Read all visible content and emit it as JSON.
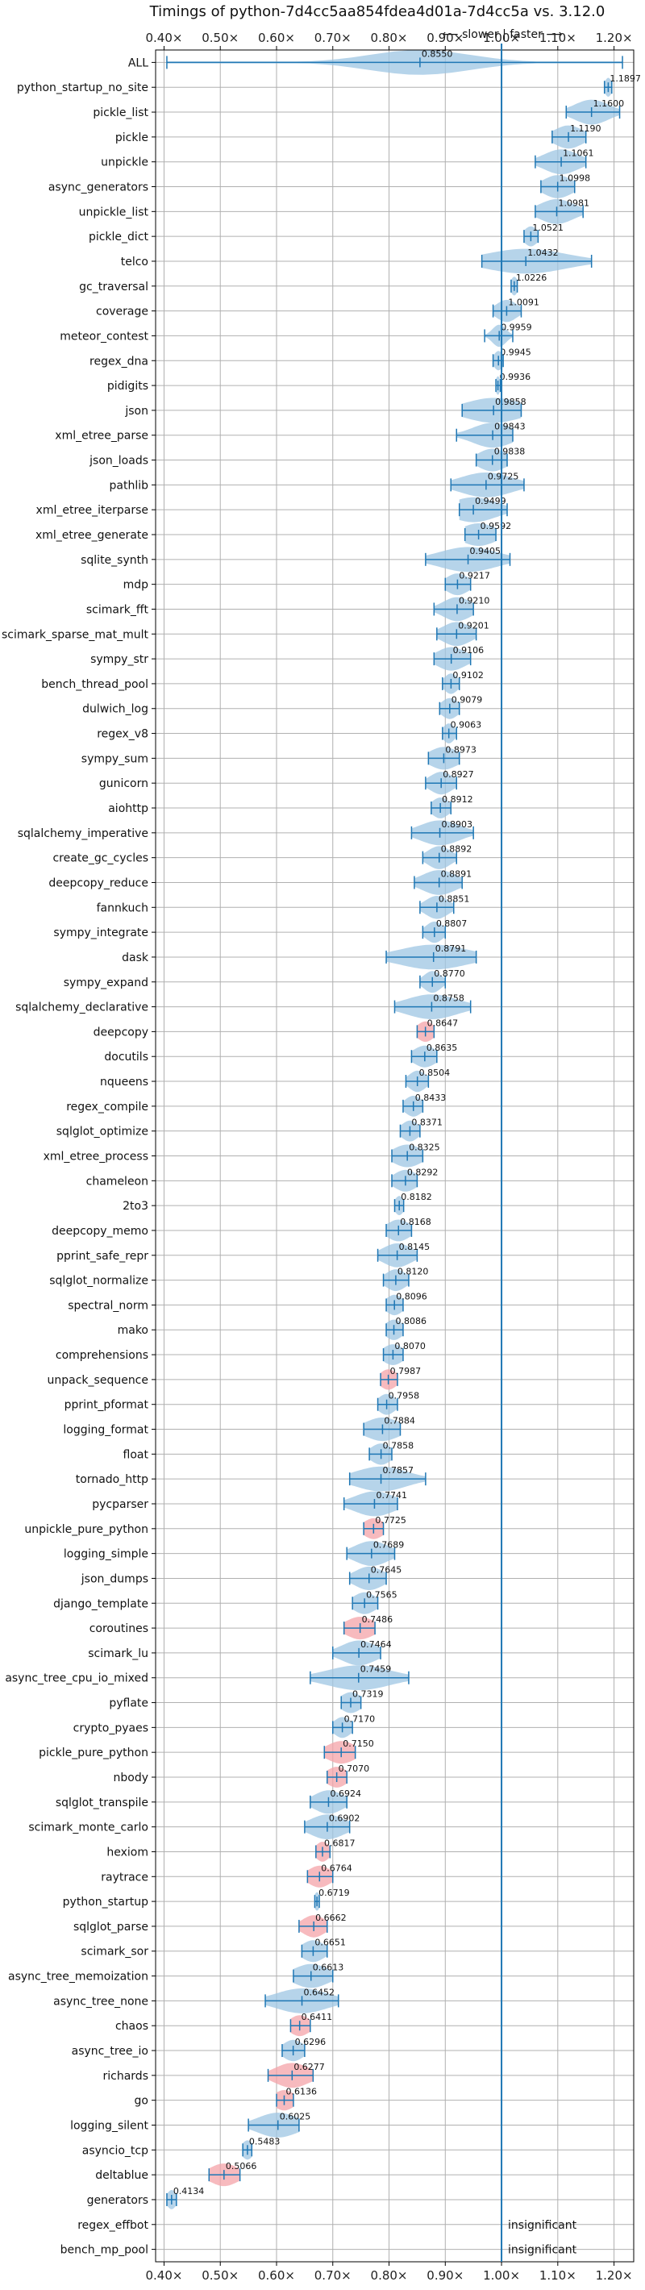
{
  "chart_data": {
    "type": "violin",
    "title": "Timings of python-7d4cc5aa854fdea4d01a-7d4cc5a vs. 3.12.0",
    "direction_label": "⟵ slower | faster ⟶",
    "xlim": [
      0.385,
      1.235
    ],
    "xticks": [
      0.4,
      0.5,
      0.6,
      0.7,
      0.8,
      0.9,
      1.0,
      1.1,
      1.2
    ],
    "xtick_labels": [
      "0.40×",
      "0.50×",
      "0.60×",
      "0.70×",
      "0.80×",
      "0.90×",
      "1.00×",
      "1.10×",
      "1.20×"
    ],
    "reference_line": 1.0,
    "grid": true,
    "colors": {
      "normal": "#9ec5e3",
      "significant_slow": "#f4a3a8",
      "line": "#1f77b4",
      "grid": "#b0b0b0"
    },
    "benchmarks": [
      {
        "name": "ALL",
        "value": 0.855,
        "label": "0.8550",
        "lo": 0.405,
        "hi": 1.215,
        "spread": 0.09,
        "highlight": false
      },
      {
        "name": "python_startup_no_site",
        "value": 1.1897,
        "label": "1.1897",
        "lo": 1.183,
        "hi": 1.196,
        "spread": 0.006,
        "highlight": false
      },
      {
        "name": "pickle_list",
        "value": 1.16,
        "label": "1.1600",
        "lo": 1.115,
        "hi": 1.21,
        "spread": 0.03,
        "highlight": false
      },
      {
        "name": "pickle",
        "value": 1.119,
        "label": "1.1190",
        "lo": 1.09,
        "hi": 1.15,
        "spread": 0.025,
        "highlight": false
      },
      {
        "name": "unpickle",
        "value": 1.1061,
        "label": "1.1061",
        "lo": 1.06,
        "hi": 1.15,
        "spread": 0.03,
        "highlight": false
      },
      {
        "name": "async_generators",
        "value": 1.0998,
        "label": "1.0998",
        "lo": 1.07,
        "hi": 1.13,
        "spread": 0.025,
        "highlight": false
      },
      {
        "name": "unpickle_list",
        "value": 1.0981,
        "label": "1.0981",
        "lo": 1.06,
        "hi": 1.145,
        "spread": 0.03,
        "highlight": false
      },
      {
        "name": "pickle_dict",
        "value": 1.0521,
        "label": "1.0521",
        "lo": 1.04,
        "hi": 1.065,
        "spread": 0.012,
        "highlight": false
      },
      {
        "name": "telco",
        "value": 1.0432,
        "label": "1.0432",
        "lo": 0.965,
        "hi": 1.16,
        "spread": 0.07,
        "highlight": false
      },
      {
        "name": "gc_traversal",
        "value": 1.0226,
        "label": "1.0226",
        "lo": 1.017,
        "hi": 1.028,
        "spread": 0.006,
        "highlight": false
      },
      {
        "name": "coverage",
        "value": 1.0091,
        "label": "1.0091",
        "lo": 0.985,
        "hi": 1.035,
        "spread": 0.018,
        "highlight": false
      },
      {
        "name": "meteor_contest",
        "value": 0.9959,
        "label": "0.9959",
        "lo": 0.97,
        "hi": 1.02,
        "spread": 0.012,
        "highlight": false
      },
      {
        "name": "regex_dna",
        "value": 0.9945,
        "label": "0.9945",
        "lo": 0.985,
        "hi": 1.003,
        "spread": 0.008,
        "highlight": false
      },
      {
        "name": "pidigits",
        "value": 0.9936,
        "label": "0.9936",
        "lo": 0.99,
        "hi": 0.998,
        "spread": 0.004,
        "highlight": false
      },
      {
        "name": "json",
        "value": 0.9858,
        "label": "0.9858",
        "lo": 0.93,
        "hi": 1.035,
        "spread": 0.05,
        "highlight": false
      },
      {
        "name": "xml_etree_parse",
        "value": 0.9843,
        "label": "0.9843",
        "lo": 0.92,
        "hi": 1.02,
        "spread": 0.035,
        "highlight": false
      },
      {
        "name": "json_loads",
        "value": 0.9838,
        "label": "0.9838",
        "lo": 0.955,
        "hi": 1.01,
        "spread": 0.025,
        "highlight": false
      },
      {
        "name": "pathlib",
        "value": 0.9725,
        "label": "0.9725",
        "lo": 0.91,
        "hi": 1.04,
        "spread": 0.045,
        "highlight": false
      },
      {
        "name": "xml_etree_iterparse",
        "value": 0.9499,
        "label": "0.9499",
        "lo": 0.925,
        "hi": 1.01,
        "spread": 0.04,
        "highlight": false
      },
      {
        "name": "xml_etree_generate",
        "value": 0.9592,
        "label": "0.9592",
        "lo": 0.935,
        "hi": 0.99,
        "spread": 0.03,
        "highlight": false
      },
      {
        "name": "sqlite_synth",
        "value": 0.9405,
        "label": "0.9405",
        "lo": 0.865,
        "hi": 1.015,
        "spread": 0.05,
        "highlight": false
      },
      {
        "name": "mdp",
        "value": 0.9217,
        "label": "0.9217",
        "lo": 0.9,
        "hi": 0.945,
        "spread": 0.02,
        "highlight": false
      },
      {
        "name": "scimark_fft",
        "value": 0.921,
        "label": "0.9210",
        "lo": 0.88,
        "hi": 0.95,
        "spread": 0.025,
        "highlight": false
      },
      {
        "name": "scimark_sparse_mat_mult",
        "value": 0.9201,
        "label": "0.9201",
        "lo": 0.885,
        "hi": 0.955,
        "spread": 0.025,
        "highlight": false
      },
      {
        "name": "sympy_str",
        "value": 0.9106,
        "label": "0.9106",
        "lo": 0.88,
        "hi": 0.945,
        "spread": 0.025,
        "highlight": false
      },
      {
        "name": "bench_thread_pool",
        "value": 0.9102,
        "label": "0.9102",
        "lo": 0.895,
        "hi": 0.925,
        "spread": 0.012,
        "highlight": false
      },
      {
        "name": "dulwich_log",
        "value": 0.9079,
        "label": "0.9079",
        "lo": 0.89,
        "hi": 0.925,
        "spread": 0.015,
        "highlight": false
      },
      {
        "name": "regex_v8",
        "value": 0.9063,
        "label": "0.9063",
        "lo": 0.895,
        "hi": 0.92,
        "spread": 0.01,
        "highlight": false
      },
      {
        "name": "sympy_sum",
        "value": 0.8973,
        "label": "0.8973",
        "lo": 0.87,
        "hi": 0.925,
        "spread": 0.025,
        "highlight": false
      },
      {
        "name": "gunicorn",
        "value": 0.8927,
        "label": "0.8927",
        "lo": 0.865,
        "hi": 0.92,
        "spread": 0.02,
        "highlight": false
      },
      {
        "name": "aiohttp",
        "value": 0.8912,
        "label": "0.8912",
        "lo": 0.875,
        "hi": 0.91,
        "spread": 0.015,
        "highlight": false
      },
      {
        "name": "sqlalchemy_imperative",
        "value": 0.8903,
        "label": "0.8903",
        "lo": 0.84,
        "hi": 0.95,
        "spread": 0.035,
        "highlight": false
      },
      {
        "name": "create_gc_cycles",
        "value": 0.8892,
        "label": "0.8892",
        "lo": 0.86,
        "hi": 0.92,
        "spread": 0.02,
        "highlight": false
      },
      {
        "name": "deepcopy_reduce",
        "value": 0.8891,
        "label": "0.8891",
        "lo": 0.845,
        "hi": 0.93,
        "spread": 0.03,
        "highlight": false
      },
      {
        "name": "fannkuch",
        "value": 0.8851,
        "label": "0.8851",
        "lo": 0.855,
        "hi": 0.915,
        "spread": 0.02,
        "highlight": false
      },
      {
        "name": "sympy_integrate",
        "value": 0.8807,
        "label": "0.8807",
        "lo": 0.86,
        "hi": 0.9,
        "spread": 0.015,
        "highlight": false
      },
      {
        "name": "dask",
        "value": 0.8791,
        "label": "0.8791",
        "lo": 0.795,
        "hi": 0.955,
        "spread": 0.06,
        "highlight": false
      },
      {
        "name": "sympy_expand",
        "value": 0.877,
        "label": "0.8770",
        "lo": 0.855,
        "hi": 0.9,
        "spread": 0.015,
        "highlight": false
      },
      {
        "name": "sqlalchemy_declarative",
        "value": 0.8758,
        "label": "0.8758",
        "lo": 0.81,
        "hi": 0.945,
        "spread": 0.045,
        "highlight": false
      },
      {
        "name": "deepcopy",
        "value": 0.8647,
        "label": "0.8647",
        "lo": 0.85,
        "hi": 0.88,
        "spread": 0.015,
        "highlight": true
      },
      {
        "name": "docutils",
        "value": 0.8635,
        "label": "0.8635",
        "lo": 0.84,
        "hi": 0.885,
        "spread": 0.02,
        "highlight": false
      },
      {
        "name": "nqueens",
        "value": 0.8504,
        "label": "0.8504",
        "lo": 0.83,
        "hi": 0.87,
        "spread": 0.015,
        "highlight": false
      },
      {
        "name": "regex_compile",
        "value": 0.8433,
        "label": "0.8433",
        "lo": 0.825,
        "hi": 0.86,
        "spread": 0.015,
        "highlight": false
      },
      {
        "name": "sqlglot_optimize",
        "value": 0.8371,
        "label": "0.8371",
        "lo": 0.82,
        "hi": 0.855,
        "spread": 0.015,
        "highlight": false
      },
      {
        "name": "xml_etree_process",
        "value": 0.8325,
        "label": "0.8325",
        "lo": 0.805,
        "hi": 0.86,
        "spread": 0.025,
        "highlight": false
      },
      {
        "name": "chameleon",
        "value": 0.8292,
        "label": "0.8292",
        "lo": 0.805,
        "hi": 0.85,
        "spread": 0.02,
        "highlight": false
      },
      {
        "name": "2to3",
        "value": 0.8182,
        "label": "0.8182",
        "lo": 0.81,
        "hi": 0.826,
        "spread": 0.008,
        "highlight": false
      },
      {
        "name": "deepcopy_memo",
        "value": 0.8168,
        "label": "0.8168",
        "lo": 0.795,
        "hi": 0.84,
        "spread": 0.02,
        "highlight": false
      },
      {
        "name": "pprint_safe_repr",
        "value": 0.8145,
        "label": "0.8145",
        "lo": 0.78,
        "hi": 0.85,
        "spread": 0.025,
        "highlight": false
      },
      {
        "name": "sqlglot_normalize",
        "value": 0.812,
        "label": "0.8120",
        "lo": 0.79,
        "hi": 0.835,
        "spread": 0.018,
        "highlight": false
      },
      {
        "name": "spectral_norm",
        "value": 0.8096,
        "label": "0.8096",
        "lo": 0.795,
        "hi": 0.825,
        "spread": 0.015,
        "highlight": false
      },
      {
        "name": "mako",
        "value": 0.8086,
        "label": "0.8086",
        "lo": 0.795,
        "hi": 0.825,
        "spread": 0.015,
        "highlight": false
      },
      {
        "name": "comprehensions",
        "value": 0.807,
        "label": "0.8070",
        "lo": 0.79,
        "hi": 0.825,
        "spread": 0.018,
        "highlight": false
      },
      {
        "name": "unpack_sequence",
        "value": 0.7987,
        "label": "0.7987",
        "lo": 0.785,
        "hi": 0.815,
        "spread": 0.015,
        "highlight": true
      },
      {
        "name": "pprint_pformat",
        "value": 0.7958,
        "label": "0.7958",
        "lo": 0.78,
        "hi": 0.815,
        "spread": 0.015,
        "highlight": false
      },
      {
        "name": "logging_format",
        "value": 0.7884,
        "label": "0.7884",
        "lo": 0.755,
        "hi": 0.82,
        "spread": 0.03,
        "highlight": false
      },
      {
        "name": "float",
        "value": 0.7858,
        "label": "0.7858",
        "lo": 0.765,
        "hi": 0.805,
        "spread": 0.018,
        "highlight": false
      },
      {
        "name": "tornado_http",
        "value": 0.7857,
        "label": "0.7857",
        "lo": 0.73,
        "hi": 0.865,
        "spread": 0.045,
        "highlight": false
      },
      {
        "name": "pycparser",
        "value": 0.7741,
        "label": "0.7741",
        "lo": 0.72,
        "hi": 0.815,
        "spread": 0.035,
        "highlight": false
      },
      {
        "name": "unpickle_pure_python",
        "value": 0.7725,
        "label": "0.7725",
        "lo": 0.755,
        "hi": 0.79,
        "spread": 0.018,
        "highlight": true
      },
      {
        "name": "logging_simple",
        "value": 0.7689,
        "label": "0.7689",
        "lo": 0.725,
        "hi": 0.81,
        "spread": 0.03,
        "highlight": false
      },
      {
        "name": "json_dumps",
        "value": 0.7645,
        "label": "0.7645",
        "lo": 0.73,
        "hi": 0.795,
        "spread": 0.025,
        "highlight": false
      },
      {
        "name": "django_template",
        "value": 0.7565,
        "label": "0.7565",
        "lo": 0.735,
        "hi": 0.78,
        "spread": 0.02,
        "highlight": false
      },
      {
        "name": "coroutines",
        "value": 0.7486,
        "label": "0.7486",
        "lo": 0.72,
        "hi": 0.775,
        "spread": 0.025,
        "highlight": true
      },
      {
        "name": "scimark_lu",
        "value": 0.7464,
        "label": "0.7464",
        "lo": 0.7,
        "hi": 0.785,
        "spread": 0.03,
        "highlight": false
      },
      {
        "name": "async_tree_cpu_io_mixed",
        "value": 0.7459,
        "label": "0.7459",
        "lo": 0.66,
        "hi": 0.835,
        "spread": 0.055,
        "highlight": false
      },
      {
        "name": "pyflate",
        "value": 0.7319,
        "label": "0.7319",
        "lo": 0.715,
        "hi": 0.75,
        "spread": 0.018,
        "highlight": false
      },
      {
        "name": "crypto_pyaes",
        "value": 0.717,
        "label": "0.7170",
        "lo": 0.7,
        "hi": 0.735,
        "spread": 0.015,
        "highlight": false
      },
      {
        "name": "pickle_pure_python",
        "value": 0.715,
        "label": "0.7150",
        "lo": 0.685,
        "hi": 0.74,
        "spread": 0.025,
        "highlight": true
      },
      {
        "name": "nbody",
        "value": 0.707,
        "label": "0.7070",
        "lo": 0.69,
        "hi": 0.725,
        "spread": 0.018,
        "highlight": true
      },
      {
        "name": "sqlglot_transpile",
        "value": 0.6924,
        "label": "0.6924",
        "lo": 0.66,
        "hi": 0.725,
        "spread": 0.025,
        "highlight": false
      },
      {
        "name": "scimark_monte_carlo",
        "value": 0.6902,
        "label": "0.6902",
        "lo": 0.65,
        "hi": 0.73,
        "spread": 0.03,
        "highlight": false
      },
      {
        "name": "hexiom",
        "value": 0.6817,
        "label": "0.6817",
        "lo": 0.67,
        "hi": 0.695,
        "spread": 0.012,
        "highlight": true
      },
      {
        "name": "raytrace",
        "value": 0.6764,
        "label": "0.6764",
        "lo": 0.655,
        "hi": 0.7,
        "spread": 0.02,
        "highlight": true
      },
      {
        "name": "python_startup",
        "value": 0.6719,
        "label": "0.6719",
        "lo": 0.668,
        "hi": 0.676,
        "spread": 0.005,
        "highlight": false
      },
      {
        "name": "sqlglot_parse",
        "value": 0.6662,
        "label": "0.6662",
        "lo": 0.64,
        "hi": 0.69,
        "spread": 0.02,
        "highlight": true
      },
      {
        "name": "scimark_sor",
        "value": 0.6651,
        "label": "0.6651",
        "lo": 0.645,
        "hi": 0.69,
        "spread": 0.02,
        "highlight": false
      },
      {
        "name": "async_tree_memoization",
        "value": 0.6613,
        "label": "0.6613",
        "lo": 0.63,
        "hi": 0.7,
        "spread": 0.03,
        "highlight": false
      },
      {
        "name": "async_tree_none",
        "value": 0.6452,
        "label": "0.6452",
        "lo": 0.58,
        "hi": 0.71,
        "spread": 0.045,
        "highlight": false
      },
      {
        "name": "chaos",
        "value": 0.6411,
        "label": "0.6411",
        "lo": 0.625,
        "hi": 0.66,
        "spread": 0.018,
        "highlight": true
      },
      {
        "name": "async_tree_io",
        "value": 0.6296,
        "label": "0.6296",
        "lo": 0.61,
        "hi": 0.65,
        "spread": 0.018,
        "highlight": false
      },
      {
        "name": "richards",
        "value": 0.6277,
        "label": "0.6277",
        "lo": 0.585,
        "hi": 0.665,
        "spread": 0.03,
        "highlight": true
      },
      {
        "name": "go",
        "value": 0.6136,
        "label": "0.6136",
        "lo": 0.6,
        "hi": 0.63,
        "spread": 0.018,
        "highlight": true
      },
      {
        "name": "logging_silent",
        "value": 0.6025,
        "label": "0.6025",
        "lo": 0.55,
        "hi": 0.64,
        "spread": 0.035,
        "highlight": false
      },
      {
        "name": "asyncio_tcp",
        "value": 0.5483,
        "label": "0.5483",
        "lo": 0.54,
        "hi": 0.556,
        "spread": 0.01,
        "highlight": false
      },
      {
        "name": "deltablue",
        "value": 0.5066,
        "label": "0.5066",
        "lo": 0.48,
        "hi": 0.535,
        "spread": 0.025,
        "highlight": true
      },
      {
        "name": "generators",
        "value": 0.4134,
        "label": "0.4134",
        "lo": 0.405,
        "hi": 0.422,
        "spread": 0.008,
        "highlight": false
      },
      {
        "name": "regex_effbot",
        "value": null,
        "label": "insignificant",
        "lo": null,
        "hi": null,
        "spread": 0,
        "highlight": false
      },
      {
        "name": "bench_mp_pool",
        "value": null,
        "label": "insignificant",
        "lo": null,
        "hi": null,
        "spread": 0,
        "highlight": false
      }
    ]
  }
}
